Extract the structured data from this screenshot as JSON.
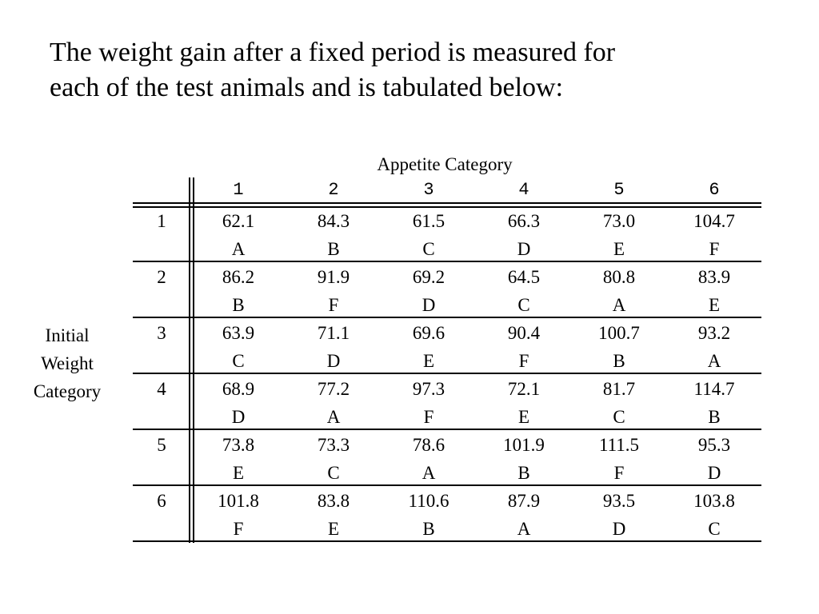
{
  "intro": {
    "line1": "The weight gain after a fixed period is measured for",
    "line2": "each of the test animals and is tabulated below:"
  },
  "table": {
    "column_group_title": "Appetite Category",
    "row_group_title": [
      "Initial",
      "Weight",
      "Category"
    ],
    "columns": [
      "1",
      "2",
      "3",
      "4",
      "5",
      "6"
    ],
    "rows": [
      {
        "label": "1",
        "cells": [
          {
            "value": "62.1",
            "treatment": "A"
          },
          {
            "value": "84.3",
            "treatment": "B"
          },
          {
            "value": "61.5",
            "treatment": "C"
          },
          {
            "value": "66.3",
            "treatment": "D"
          },
          {
            "value": "73.0",
            "treatment": "E"
          },
          {
            "value": "104.7",
            "treatment": "F"
          }
        ]
      },
      {
        "label": "2",
        "cells": [
          {
            "value": "86.2",
            "treatment": "B"
          },
          {
            "value": "91.9",
            "treatment": "F"
          },
          {
            "value": "69.2",
            "treatment": "D"
          },
          {
            "value": "64.5",
            "treatment": "C"
          },
          {
            "value": "80.8",
            "treatment": "A"
          },
          {
            "value": "83.9",
            "treatment": "E"
          }
        ]
      },
      {
        "label": "3",
        "cells": [
          {
            "value": "63.9",
            "treatment": "C"
          },
          {
            "value": "71.1",
            "treatment": "D"
          },
          {
            "value": "69.6",
            "treatment": "E"
          },
          {
            "value": "90.4",
            "treatment": "F"
          },
          {
            "value": "100.7",
            "treatment": "B"
          },
          {
            "value": "93.2",
            "treatment": "A"
          }
        ]
      },
      {
        "label": "4",
        "cells": [
          {
            "value": "68.9",
            "treatment": "D"
          },
          {
            "value": "77.2",
            "treatment": "A"
          },
          {
            "value": "97.3",
            "treatment": "F"
          },
          {
            "value": "72.1",
            "treatment": "E"
          },
          {
            "value": "81.7",
            "treatment": "C"
          },
          {
            "value": "114.7",
            "treatment": "B"
          }
        ]
      },
      {
        "label": "5",
        "cells": [
          {
            "value": "73.8",
            "treatment": "E"
          },
          {
            "value": "73.3",
            "treatment": "C"
          },
          {
            "value": "78.6",
            "treatment": "A"
          },
          {
            "value": "101.9",
            "treatment": "B"
          },
          {
            "value": "111.5",
            "treatment": "F"
          },
          {
            "value": "95.3",
            "treatment": "D"
          }
        ]
      },
      {
        "label": "6",
        "cells": [
          {
            "value": "101.8",
            "treatment": "F"
          },
          {
            "value": "83.8",
            "treatment": "E"
          },
          {
            "value": "110.6",
            "treatment": "B"
          },
          {
            "value": "87.9",
            "treatment": "A"
          },
          {
            "value": "93.5",
            "treatment": "D"
          },
          {
            "value": "103.8",
            "treatment": "C"
          }
        ]
      }
    ]
  }
}
